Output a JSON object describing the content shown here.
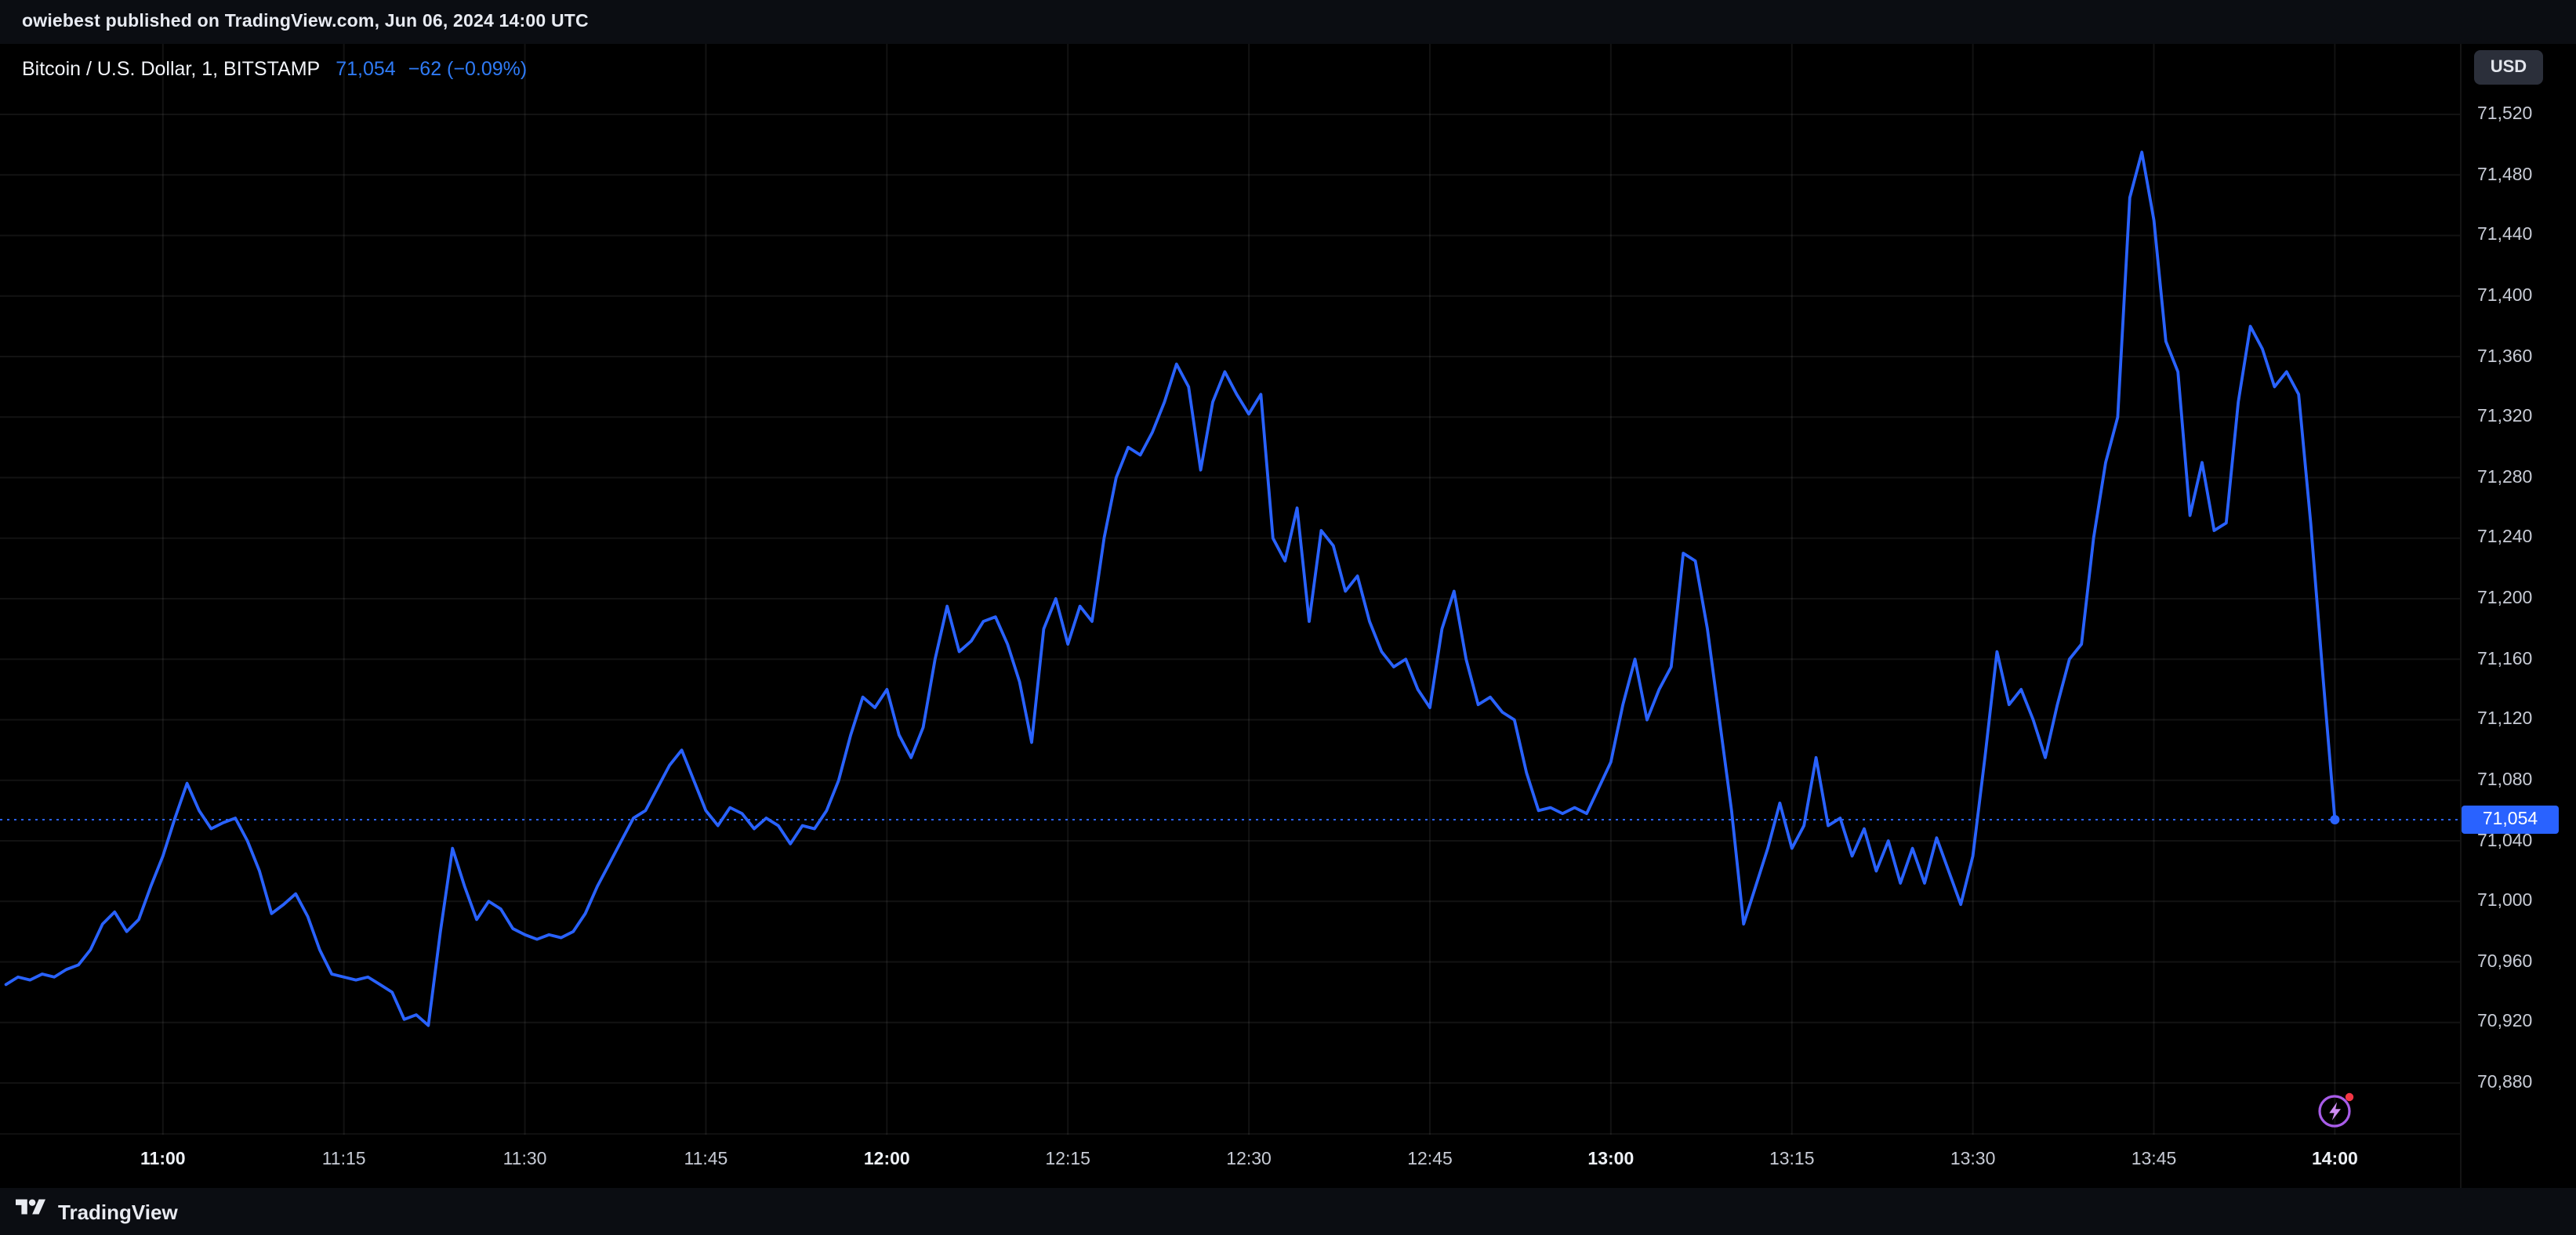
{
  "attribution": {
    "text": "owiebest published on TradingView.com, Jun 06, 2024 14:00 UTC"
  },
  "header": {
    "symbol_title": "Bitcoin / U.S. Dollar, 1, BITSTAMP",
    "price": "71,054",
    "change": "−62 (−0.09%)"
  },
  "price_axis": {
    "currency_button": "USD",
    "current_price": {
      "value": 71054,
      "label": "71,054"
    },
    "ticks": [
      {
        "value": 71520,
        "label": "71,520"
      },
      {
        "value": 71480,
        "label": "71,480"
      },
      {
        "value": 71440,
        "label": "71,440"
      },
      {
        "value": 71400,
        "label": "71,400"
      },
      {
        "value": 71360,
        "label": "71,360"
      },
      {
        "value": 71320,
        "label": "71,320"
      },
      {
        "value": 71280,
        "label": "71,280"
      },
      {
        "value": 71240,
        "label": "71,240"
      },
      {
        "value": 71200,
        "label": "71,200"
      },
      {
        "value": 71160,
        "label": "71,160"
      },
      {
        "value": 71120,
        "label": "71,120"
      },
      {
        "value": 71080,
        "label": "71,080"
      },
      {
        "value": 71040,
        "label": "71,040"
      },
      {
        "value": 71000,
        "label": "71,000"
      },
      {
        "value": 70960,
        "label": "70,960"
      },
      {
        "value": 70920,
        "label": "70,920"
      },
      {
        "value": 70880,
        "label": "70,880"
      }
    ]
  },
  "time_axis": {
    "ticks": [
      {
        "minutes": 0,
        "label": "11:00",
        "bold": true
      },
      {
        "minutes": 15,
        "label": "11:15",
        "bold": false
      },
      {
        "minutes": 30,
        "label": "11:30",
        "bold": false
      },
      {
        "minutes": 45,
        "label": "11:45",
        "bold": false
      },
      {
        "minutes": 60,
        "label": "12:00",
        "bold": true
      },
      {
        "minutes": 75,
        "label": "12:15",
        "bold": false
      },
      {
        "minutes": 90,
        "label": "12:30",
        "bold": false
      },
      {
        "minutes": 105,
        "label": "12:45",
        "bold": false
      },
      {
        "minutes": 120,
        "label": "13:00",
        "bold": true
      },
      {
        "minutes": 135,
        "label": "13:15",
        "bold": false
      },
      {
        "minutes": 150,
        "label": "13:30",
        "bold": false
      },
      {
        "minutes": 165,
        "label": "13:45",
        "bold": false
      },
      {
        "minutes": 180,
        "label": "14:00",
        "bold": true
      }
    ]
  },
  "footer": {
    "brand": "TradingView"
  },
  "colors": {
    "accent": "#2962FF",
    "chart_background": "#000000",
    "page_background": "#0b0d12",
    "price_tag_bg": "#2962FF",
    "grid": "rgba(255,255,255,0.07)",
    "publish_icon_purple": "#a855f7",
    "notification_red": "#f23645"
  },
  "chart_data": {
    "type": "line",
    "title": "Bitcoin / U.S. Dollar, 1, BITSTAMP",
    "symbol": "BTCUSD",
    "exchange": "BITSTAMP",
    "interval": "1",
    "xlabel": "Time (UTC), Jun 06 2024",
    "ylabel": "Price (USD)",
    "x_unit": "minutes_after_11:00_UTC",
    "x_range": [
      -13.5,
      190.5
    ],
    "ylim": [
      70880,
      71520
    ],
    "y_tick_step": 40,
    "grid": true,
    "line_color": "#2962FF",
    "current": {
      "price": 71054,
      "change": -62,
      "change_pct": -0.09
    },
    "series": [
      {
        "name": "BTCUSD 1-min close",
        "points": [
          [
            -13,
            70945
          ],
          [
            -12,
            70950
          ],
          [
            -11,
            70948
          ],
          [
            -10,
            70952
          ],
          [
            -9,
            70950
          ],
          [
            -8,
            70955
          ],
          [
            -7,
            70958
          ],
          [
            -6,
            70968
          ],
          [
            -5,
            70985
          ],
          [
            -4,
            70993
          ],
          [
            -3,
            70980
          ],
          [
            -2,
            70988
          ],
          [
            -1,
            71010
          ],
          [
            0,
            71030
          ],
          [
            1,
            71055
          ],
          [
            2,
            71078
          ],
          [
            3,
            71060
          ],
          [
            4,
            71048
          ],
          [
            5,
            71052
          ],
          [
            6,
            71055
          ],
          [
            7,
            71040
          ],
          [
            8,
            71020
          ],
          [
            9,
            70992
          ],
          [
            10,
            70998
          ],
          [
            11,
            71005
          ],
          [
            12,
            70990
          ],
          [
            13,
            70968
          ],
          [
            14,
            70952
          ],
          [
            15,
            70950
          ],
          [
            16,
            70948
          ],
          [
            17,
            70950
          ],
          [
            18,
            70945
          ],
          [
            19,
            70940
          ],
          [
            20,
            70922
          ],
          [
            21,
            70925
          ],
          [
            22,
            70918
          ],
          [
            23,
            70980
          ],
          [
            24,
            71035
          ],
          [
            25,
            71010
          ],
          [
            26,
            70988
          ],
          [
            27,
            71000
          ],
          [
            28,
            70995
          ],
          [
            29,
            70982
          ],
          [
            30,
            70978
          ],
          [
            31,
            70975
          ],
          [
            32,
            70978
          ],
          [
            33,
            70976
          ],
          [
            34,
            70980
          ],
          [
            35,
            70992
          ],
          [
            36,
            71010
          ],
          [
            37,
            71025
          ],
          [
            38,
            71040
          ],
          [
            39,
            71055
          ],
          [
            40,
            71060
          ],
          [
            41,
            71075
          ],
          [
            42,
            71090
          ],
          [
            43,
            71100
          ],
          [
            44,
            71080
          ],
          [
            45,
            71060
          ],
          [
            46,
            71050
          ],
          [
            47,
            71062
          ],
          [
            48,
            71058
          ],
          [
            49,
            71048
          ],
          [
            50,
            71055
          ],
          [
            51,
            71050
          ],
          [
            52,
            71038
          ],
          [
            53,
            71050
          ],
          [
            54,
            71048
          ],
          [
            55,
            71060
          ],
          [
            56,
            71080
          ],
          [
            57,
            71110
          ],
          [
            58,
            71135
          ],
          [
            59,
            71128
          ],
          [
            60,
            71140
          ],
          [
            61,
            71110
          ],
          [
            62,
            71095
          ],
          [
            63,
            71115
          ],
          [
            64,
            71160
          ],
          [
            65,
            71195
          ],
          [
            66,
            71165
          ],
          [
            67,
            71172
          ],
          [
            68,
            71185
          ],
          [
            69,
            71188
          ],
          [
            70,
            71170
          ],
          [
            71,
            71145
          ],
          [
            72,
            71105
          ],
          [
            73,
            71180
          ],
          [
            74,
            71200
          ],
          [
            75,
            71170
          ],
          [
            76,
            71195
          ],
          [
            77,
            71185
          ],
          [
            78,
            71240
          ],
          [
            79,
            71280
          ],
          [
            80,
            71300
          ],
          [
            81,
            71295
          ],
          [
            82,
            71310
          ],
          [
            83,
            71330
          ],
          [
            84,
            71355
          ],
          [
            85,
            71340
          ],
          [
            86,
            71285
          ],
          [
            87,
            71330
          ],
          [
            88,
            71350
          ],
          [
            89,
            71335
          ],
          [
            90,
            71322
          ],
          [
            91,
            71335
          ],
          [
            92,
            71240
          ],
          [
            93,
            71225
          ],
          [
            94,
            71260
          ],
          [
            95,
            71185
          ],
          [
            96,
            71245
          ],
          [
            97,
            71235
          ],
          [
            98,
            71205
          ],
          [
            99,
            71215
          ],
          [
            100,
            71185
          ],
          [
            101,
            71165
          ],
          [
            102,
            71155
          ],
          [
            103,
            71160
          ],
          [
            104,
            71140
          ],
          [
            105,
            71128
          ],
          [
            106,
            71180
          ],
          [
            107,
            71205
          ],
          [
            108,
            71160
          ],
          [
            109,
            71130
          ],
          [
            110,
            71135
          ],
          [
            111,
            71125
          ],
          [
            112,
            71120
          ],
          [
            113,
            71085
          ],
          [
            114,
            71060
          ],
          [
            115,
            71062
          ],
          [
            116,
            71058
          ],
          [
            117,
            71062
          ],
          [
            118,
            71058
          ],
          [
            119,
            71075
          ],
          [
            120,
            71092
          ],
          [
            121,
            71130
          ],
          [
            122,
            71160
          ],
          [
            123,
            71120
          ],
          [
            124,
            71140
          ],
          [
            125,
            71155
          ],
          [
            126,
            71230
          ],
          [
            127,
            71225
          ],
          [
            128,
            71180
          ],
          [
            129,
            71120
          ],
          [
            130,
            71060
          ],
          [
            131,
            70985
          ],
          [
            132,
            71010
          ],
          [
            133,
            71035
          ],
          [
            134,
            71065
          ],
          [
            135,
            71035
          ],
          [
            136,
            71050
          ],
          [
            137,
            71095
          ],
          [
            138,
            71050
          ],
          [
            139,
            71055
          ],
          [
            140,
            71030
          ],
          [
            141,
            71048
          ],
          [
            142,
            71020
          ],
          [
            143,
            71040
          ],
          [
            144,
            71012
          ],
          [
            145,
            71035
          ],
          [
            146,
            71012
          ],
          [
            147,
            71042
          ],
          [
            148,
            71020
          ],
          [
            149,
            70998
          ],
          [
            150,
            71030
          ],
          [
            151,
            71095
          ],
          [
            152,
            71165
          ],
          [
            153,
            71130
          ],
          [
            154,
            71140
          ],
          [
            155,
            71120
          ],
          [
            156,
            71095
          ],
          [
            157,
            71130
          ],
          [
            158,
            71160
          ],
          [
            159,
            71170
          ],
          [
            160,
            71240
          ],
          [
            161,
            71290
          ],
          [
            162,
            71320
          ],
          [
            163,
            71465
          ],
          [
            164,
            71495
          ],
          [
            165,
            71450
          ],
          [
            166,
            71370
          ],
          [
            167,
            71350
          ],
          [
            168,
            71255
          ],
          [
            169,
            71290
          ],
          [
            170,
            71245
          ],
          [
            171,
            71250
          ],
          [
            172,
            71330
          ],
          [
            173,
            71380
          ],
          [
            174,
            71365
          ],
          [
            175,
            71340
          ],
          [
            176,
            71350
          ],
          [
            177,
            71335
          ],
          [
            178,
            71250
          ],
          [
            179,
            71150
          ],
          [
            180,
            71054
          ]
        ]
      }
    ]
  }
}
